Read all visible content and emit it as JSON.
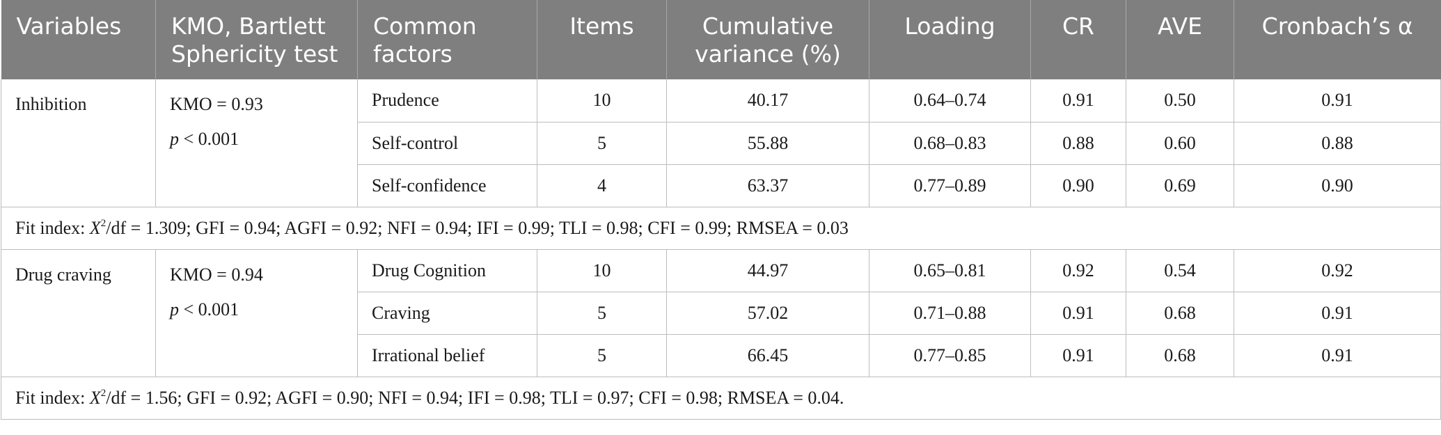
{
  "headers": [
    "Variables",
    "KMO, Bartlett Sphericity test",
    "Common factors",
    "Items",
    "Cumulative variance (%)",
    "Loading",
    "CR",
    "AVE",
    "Cronbach’s α"
  ],
  "groups": [
    {
      "variable": "Inhibition",
      "kmo": "KMO = 0.93",
      "p_symbol": "p",
      "p_rest": " < 0.001",
      "rows": [
        {
          "factor": "Prudence",
          "items": "10",
          "cumvar": "40.17",
          "loading": "0.64–0.74",
          "cr": "0.91",
          "ave": "0.50",
          "alpha": "0.91"
        },
        {
          "factor": "Self-control",
          "items": "5",
          "cumvar": "55.88",
          "loading": "0.68–0.83",
          "cr": "0.88",
          "ave": "0.60",
          "alpha": "0.88"
        },
        {
          "factor": "Self-confidence",
          "items": "4",
          "cumvar": "63.37",
          "loading": "0.77–0.89",
          "cr": "0.90",
          "ave": "0.69",
          "alpha": "0.90"
        }
      ],
      "fit_prefix": "Fit index: ",
      "fit_x": "X",
      "fit_sup": "2",
      "fit_rest": "/df = 1.309; GFI = 0.94; AGFI = 0.92; NFI = 0.94; IFI = 0.99; TLI = 0.98; CFI = 0.99; RMSEA = 0.03"
    },
    {
      "variable": "Drug craving",
      "kmo": "KMO = 0.94",
      "p_symbol": "p",
      "p_rest": " < 0.001",
      "rows": [
        {
          "factor": "Drug Cognition",
          "items": "10",
          "cumvar": "44.97",
          "loading": "0.65–0.81",
          "cr": "0.92",
          "ave": "0.54",
          "alpha": "0.92"
        },
        {
          "factor": "Craving",
          "items": "5",
          "cumvar": "57.02",
          "loading": "0.71–0.88",
          "cr": "0.91",
          "ave": "0.68",
          "alpha": "0.91"
        },
        {
          "factor": "Irrational belief",
          "items": "5",
          "cumvar": "66.45",
          "loading": "0.77–0.85",
          "cr": "0.91",
          "ave": "0.68",
          "alpha": "0.91"
        }
      ],
      "fit_prefix": "Fit index: ",
      "fit_x": "X",
      "fit_sup": "2",
      "fit_rest": "/df = 1.56; GFI = 0.92; AGFI = 0.90; NFI = 0.94; IFI = 0.98; TLI = 0.97; CFI = 0.98; RMSEA = 0.04."
    }
  ]
}
